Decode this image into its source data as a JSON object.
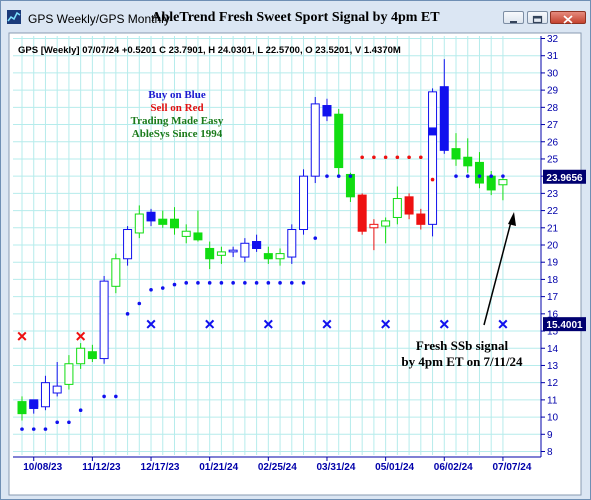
{
  "window": {
    "title": "GPS Weekly/GPS Monthly",
    "chart_title": "AbleTrend Fresh Sweet Sport Signal by 4pm ET"
  },
  "info_line": "GPS [Weekly] 07/07/24  +0.5201  C 23.7901,  H 24.0301,  L 22.5700,  O 23.5201,  V 1.4370M",
  "legend_text": [
    {
      "text": "Buy on Blue",
      "color": "#1a1ad0"
    },
    {
      "text": "Sell on Red",
      "color": "#e01010"
    },
    {
      "text": "Trading Made Easy",
      "color": "#1a7a1a"
    },
    {
      "text": "AbleSys Since 1994",
      "color": "#1a7a1a"
    }
  ],
  "annotation": {
    "line1": "Fresh SSb signal",
    "line2": "by 4pm ET on 7/11/24"
  },
  "colors": {
    "up_green": "#11dd11",
    "down_red": "#ee1111",
    "blue": "#1111ee",
    "grid": "#b6ecec",
    "axis": "#0000aa",
    "label_bg": "#000070"
  },
  "chart_data": {
    "type": "candlestick",
    "ylim": [
      8,
      32
    ],
    "y_ticks": [
      8,
      9,
      10,
      11,
      12,
      13,
      14,
      15,
      16,
      17,
      18,
      19,
      20,
      21,
      22,
      23,
      24,
      25,
      26,
      27,
      28,
      29,
      30,
      31,
      32
    ],
    "x_tick_labels": [
      "10/08/23",
      "11/12/23",
      "12/17/23",
      "01/21/24",
      "02/25/24",
      "03/31/24",
      "05/01/24",
      "06/02/24",
      "07/07/24"
    ],
    "x_tick_index": [
      1,
      6,
      11,
      16,
      21,
      26,
      31,
      36,
      41
    ],
    "price_labels": [
      {
        "value": 23.9656,
        "text": "23.9656",
        "bg": "#000070"
      },
      {
        "value": 15.4001,
        "text": "15.4001",
        "bg": "#000070"
      }
    ],
    "candles": [
      {
        "o": 10.2,
        "h": 11.2,
        "l": 9.8,
        "c": 10.9,
        "color": "green",
        "style": "filled"
      },
      {
        "o": 10.5,
        "h": 11.0,
        "l": 10.2,
        "c": 10.9,
        "color": "blue",
        "style": "filled"
      },
      {
        "o": 10.6,
        "h": 12.4,
        "l": 10.4,
        "c": 12.0,
        "color": "blue",
        "style": "hollow"
      },
      {
        "o": 11.4,
        "h": 13.2,
        "l": 11.2,
        "c": 11.8,
        "color": "blue",
        "style": "hollow"
      },
      {
        "o": 11.9,
        "h": 13.6,
        "l": 11.6,
        "c": 13.1,
        "color": "green",
        "style": "hollow"
      },
      {
        "o": 13.1,
        "h": 14.3,
        "l": 12.8,
        "c": 14.0,
        "color": "green",
        "style": "hollow"
      },
      {
        "o": 13.8,
        "h": 14.2,
        "l": 13.2,
        "c": 13.4,
        "color": "green",
        "style": "filled"
      },
      {
        "o": 13.4,
        "h": 18.2,
        "l": 13.1,
        "c": 17.9,
        "color": "blue",
        "style": "hollow"
      },
      {
        "o": 17.6,
        "h": 19.5,
        "l": 17.2,
        "c": 19.2,
        "color": "green",
        "style": "hollow"
      },
      {
        "o": 19.2,
        "h": 21.1,
        "l": 18.8,
        "c": 20.9,
        "color": "blue",
        "style": "hollow"
      },
      {
        "o": 20.7,
        "h": 22.3,
        "l": 20.4,
        "c": 21.8,
        "color": "green",
        "style": "hollow"
      },
      {
        "o": 21.8,
        "h": 22.1,
        "l": 21.1,
        "c": 21.4,
        "color": "blue",
        "style": "filled"
      },
      {
        "o": 21.5,
        "h": 22.0,
        "l": 21.0,
        "c": 21.2,
        "color": "green",
        "style": "filled"
      },
      {
        "o": 21.5,
        "h": 22.2,
        "l": 20.6,
        "c": 21.0,
        "color": "green",
        "style": "filled"
      },
      {
        "o": 20.5,
        "h": 21.2,
        "l": 20.1,
        "c": 20.8,
        "color": "green",
        "style": "hollow"
      },
      {
        "o": 20.7,
        "h": 22.0,
        "l": 20.2,
        "c": 20.3,
        "color": "green",
        "style": "filled"
      },
      {
        "o": 19.8,
        "h": 20.2,
        "l": 18.6,
        "c": 19.2,
        "color": "green",
        "style": "filled"
      },
      {
        "o": 19.4,
        "h": 19.9,
        "l": 18.9,
        "c": 19.6,
        "color": "green",
        "style": "hollow"
      },
      {
        "o": 19.7,
        "h": 19.9,
        "l": 19.3,
        "c": 19.6,
        "color": "blue",
        "style": "hollow"
      },
      {
        "o": 19.3,
        "h": 20.4,
        "l": 19.0,
        "c": 20.1,
        "color": "blue",
        "style": "hollow"
      },
      {
        "o": 20.2,
        "h": 20.6,
        "l": 19.6,
        "c": 19.8,
        "color": "blue",
        "style": "filled"
      },
      {
        "o": 19.5,
        "h": 19.9,
        "l": 18.9,
        "c": 19.2,
        "color": "green",
        "style": "filled"
      },
      {
        "o": 19.2,
        "h": 19.8,
        "l": 18.8,
        "c": 19.5,
        "color": "green",
        "style": "hollow"
      },
      {
        "o": 19.3,
        "h": 21.2,
        "l": 18.9,
        "c": 20.9,
        "color": "blue",
        "style": "hollow"
      },
      {
        "o": 20.9,
        "h": 24.4,
        "l": 20.6,
        "c": 24.0,
        "color": "blue",
        "style": "hollow"
      },
      {
        "o": 24.0,
        "h": 28.6,
        "l": 23.6,
        "c": 28.2,
        "color": "blue",
        "style": "hollow"
      },
      {
        "o": 28.1,
        "h": 28.5,
        "l": 27.2,
        "c": 27.5,
        "color": "blue",
        "style": "filled"
      },
      {
        "o": 27.6,
        "h": 27.9,
        "l": 23.9,
        "c": 24.5,
        "color": "green",
        "style": "filled"
      },
      {
        "o": 24.1,
        "h": 24.2,
        "l": 22.5,
        "c": 22.8,
        "color": "green",
        "style": "filled"
      },
      {
        "o": 22.9,
        "h": 23.0,
        "l": 20.6,
        "c": 20.8,
        "color": "red",
        "style": "filled"
      },
      {
        "o": 21.0,
        "h": 21.5,
        "l": 19.7,
        "c": 21.2,
        "color": "red",
        "style": "hollow"
      },
      {
        "o": 21.1,
        "h": 21.6,
        "l": 20.1,
        "c": 21.4,
        "color": "green",
        "style": "hollow"
      },
      {
        "o": 21.6,
        "h": 23.4,
        "l": 21.2,
        "c": 22.7,
        "color": "green",
        "style": "hollow"
      },
      {
        "o": 22.8,
        "h": 23.0,
        "l": 21.5,
        "c": 21.8,
        "color": "red",
        "style": "filled"
      },
      {
        "o": 21.8,
        "h": 22.1,
        "l": 20.9,
        "c": 21.2,
        "color": "red",
        "style": "filled"
      },
      {
        "o": 21.2,
        "h": 29.1,
        "l": 20.5,
        "c": 28.9,
        "color": "blue",
        "style": "hollow"
      },
      {
        "o": 29.2,
        "h": 30.8,
        "l": 25.3,
        "c": 25.5,
        "color": "blue",
        "style": "filled"
      },
      {
        "o": 25.6,
        "h": 26.5,
        "l": 24.6,
        "c": 25.0,
        "color": "green",
        "style": "filled"
      },
      {
        "o": 25.1,
        "h": 26.2,
        "l": 24.2,
        "c": 24.6,
        "color": "green",
        "style": "filled"
      },
      {
        "o": 24.8,
        "h": 25.4,
        "l": 23.3,
        "c": 23.6,
        "color": "green",
        "style": "filled"
      },
      {
        "o": 24.0,
        "h": 24.3,
        "l": 22.9,
        "c": 23.2,
        "color": "green",
        "style": "filled"
      },
      {
        "o": 23.5,
        "h": 24.0,
        "l": 22.6,
        "c": 23.8,
        "color": "green",
        "style": "hollow"
      }
    ],
    "highlight_boxes": [
      {
        "index": 1,
        "value": 10.8,
        "color": "blue"
      },
      {
        "index": 11,
        "value": 21.7,
        "color": "blue"
      },
      {
        "index": 20,
        "value": 20.0,
        "color": "blue"
      },
      {
        "index": 26,
        "value": 27.9,
        "color": "blue"
      },
      {
        "index": 35,
        "value": 26.6,
        "color": "blue"
      }
    ],
    "stop_dots": [
      {
        "index": 0,
        "value": 9.3,
        "color": "blue"
      },
      {
        "index": 1,
        "value": 9.3,
        "color": "blue"
      },
      {
        "index": 2,
        "value": 9.3,
        "color": "blue"
      },
      {
        "index": 3,
        "value": 9.7,
        "color": "blue"
      },
      {
        "index": 4,
        "value": 9.7,
        "color": "blue"
      },
      {
        "index": 5,
        "value": 10.4,
        "color": "blue"
      },
      {
        "index": 7,
        "value": 11.2,
        "color": "blue"
      },
      {
        "index": 8,
        "value": 11.2,
        "color": "blue"
      },
      {
        "index": 9,
        "value": 16.0,
        "color": "blue"
      },
      {
        "index": 10,
        "value": 16.6,
        "color": "blue"
      },
      {
        "index": 11,
        "value": 17.4,
        "color": "blue"
      },
      {
        "index": 12,
        "value": 17.5,
        "color": "blue"
      },
      {
        "index": 13,
        "value": 17.7,
        "color": "blue"
      },
      {
        "index": 14,
        "value": 17.8,
        "color": "blue"
      },
      {
        "index": 15,
        "value": 17.8,
        "color": "blue"
      },
      {
        "index": 16,
        "value": 17.8,
        "color": "blue"
      },
      {
        "index": 17,
        "value": 17.8,
        "color": "blue"
      },
      {
        "index": 18,
        "value": 17.8,
        "color": "blue"
      },
      {
        "index": 19,
        "value": 17.8,
        "color": "blue"
      },
      {
        "index": 20,
        "value": 17.8,
        "color": "blue"
      },
      {
        "index": 21,
        "value": 17.8,
        "color": "blue"
      },
      {
        "index": 22,
        "value": 17.8,
        "color": "blue"
      },
      {
        "index": 23,
        "value": 17.8,
        "color": "blue"
      },
      {
        "index": 24,
        "value": 17.8,
        "color": "blue"
      },
      {
        "index": 25,
        "value": 20.4,
        "color": "blue"
      },
      {
        "index": 26,
        "value": 24.0,
        "color": "blue"
      },
      {
        "index": 27,
        "value": 24.0,
        "color": "blue"
      },
      {
        "index": 28,
        "value": 24.0,
        "color": "blue"
      },
      {
        "index": 29,
        "value": 25.1,
        "color": "red"
      },
      {
        "index": 30,
        "value": 25.1,
        "color": "red"
      },
      {
        "index": 31,
        "value": 25.1,
        "color": "red"
      },
      {
        "index": 32,
        "value": 25.1,
        "color": "red"
      },
      {
        "index": 33,
        "value": 25.1,
        "color": "red"
      },
      {
        "index": 34,
        "value": 25.1,
        "color": "red"
      },
      {
        "index": 35,
        "value": 23.8,
        "color": "red"
      },
      {
        "index": 37,
        "value": 24.0,
        "color": "blue"
      },
      {
        "index": 38,
        "value": 24.0,
        "color": "blue"
      },
      {
        "index": 39,
        "value": 24.0,
        "color": "blue"
      },
      {
        "index": 40,
        "value": 24.0,
        "color": "blue"
      },
      {
        "index": 41,
        "value": 24.0,
        "color": "blue"
      }
    ],
    "x_markers": [
      {
        "index": 0,
        "value": 14.7,
        "color": "red"
      },
      {
        "index": 5,
        "value": 14.7,
        "color": "red"
      },
      {
        "index": 11,
        "value": 15.4,
        "color": "blue"
      },
      {
        "index": 16,
        "value": 15.4,
        "color": "blue"
      },
      {
        "index": 21,
        "value": 15.4,
        "color": "blue"
      },
      {
        "index": 26,
        "value": 15.4,
        "color": "blue"
      },
      {
        "index": 31,
        "value": 15.4,
        "color": "blue"
      },
      {
        "index": 36,
        "value": 15.4,
        "color": "blue"
      },
      {
        "index": 41,
        "value": 15.4,
        "color": "blue"
      }
    ]
  }
}
